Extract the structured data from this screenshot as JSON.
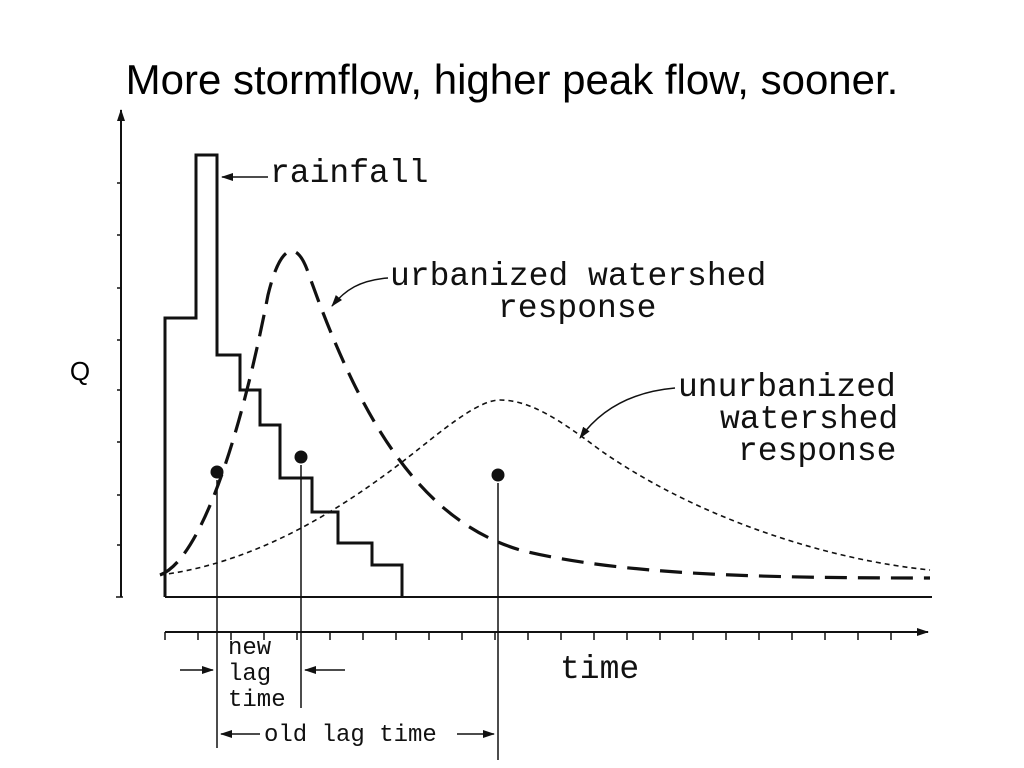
{
  "title": "More stormflow, higher peak flow, sooner.",
  "labels": {
    "rainfall": "rainfall",
    "urbanized": [
      "urbanized watershed",
      "response"
    ],
    "unurbanized": [
      "unurbanized",
      "watershed",
      "response"
    ],
    "y_axis": "Q",
    "x_axis": "time",
    "new_lag": [
      "new",
      "lag",
      "time"
    ],
    "old_lag": "old lag time"
  }
}
